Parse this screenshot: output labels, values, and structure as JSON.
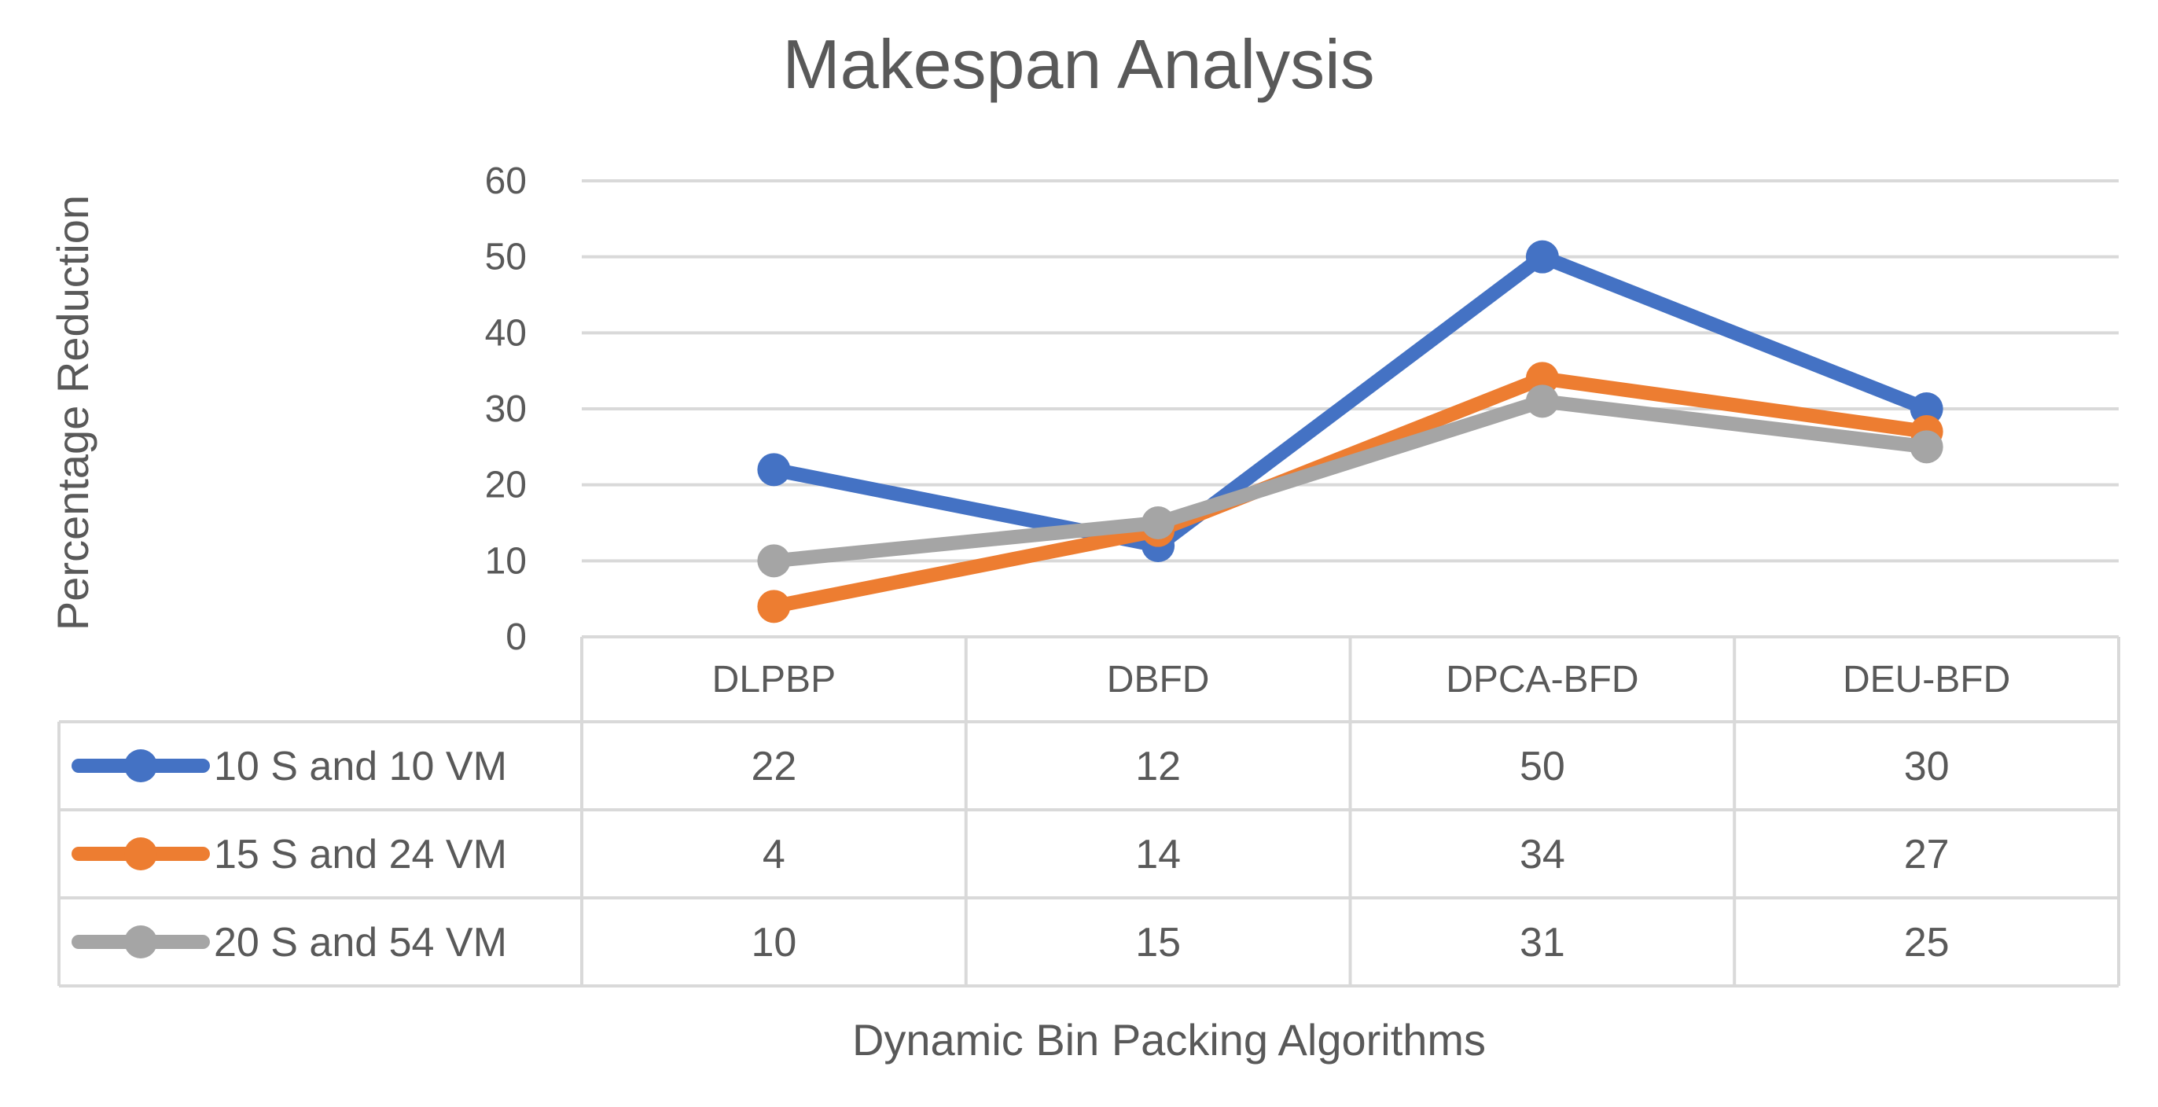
{
  "chart_data": {
    "type": "line",
    "title": "Makespan Analysis",
    "xlabel": "Dynamic Bin Packing Algorithms",
    "ylabel": "Percentage Reduction",
    "categories": [
      "DLPBP",
      "DBFD",
      "DPCA-BFD",
      "DEU-BFD"
    ],
    "ylim": [
      0,
      60
    ],
    "yticks": [
      0,
      10,
      20,
      30,
      40,
      50,
      60
    ],
    "grid": true,
    "data_table": true,
    "series": [
      {
        "name": "10 S and 10 VM",
        "values": [
          22,
          12,
          50,
          30
        ],
        "color": "#4472c4"
      },
      {
        "name": "15 S and 24 VM",
        "values": [
          4,
          14,
          34,
          27
        ],
        "color": "#ed7d31"
      },
      {
        "name": "20 S and 54 VM",
        "values": [
          10,
          15,
          31,
          25
        ],
        "color": "#a5a5a5"
      }
    ]
  }
}
